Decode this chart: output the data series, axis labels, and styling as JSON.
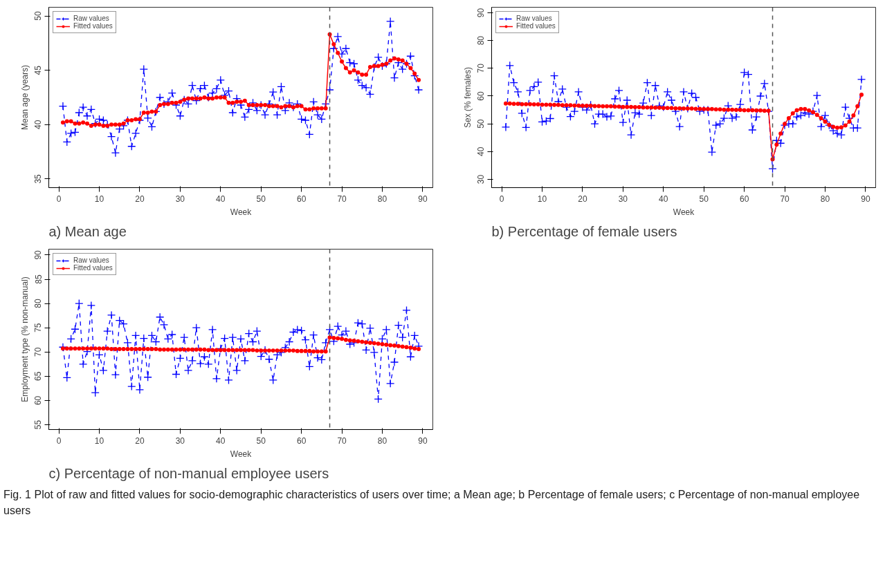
{
  "chart_data": [
    {
      "type": "line",
      "title": "a) Mean age",
      "xlabel": "Week",
      "ylabel": "Mean age (years)",
      "x": [
        1,
        2,
        3,
        4,
        5,
        6,
        7,
        8,
        9,
        10,
        11,
        12,
        13,
        14,
        15,
        16,
        17,
        18,
        19,
        20,
        21,
        22,
        23,
        24,
        25,
        26,
        27,
        28,
        29,
        30,
        31,
        32,
        33,
        34,
        35,
        36,
        37,
        38,
        39,
        40,
        41,
        42,
        43,
        44,
        45,
        46,
        47,
        48,
        49,
        50,
        51,
        52,
        53,
        54,
        55,
        56,
        57,
        58,
        59,
        60,
        61,
        62,
        63,
        64,
        65,
        66,
        67,
        68,
        69,
        70,
        71,
        72,
        73,
        74,
        75,
        76,
        77,
        78,
        79,
        80,
        81,
        82,
        83,
        84,
        85,
        86,
        87,
        88,
        89
      ],
      "series": [
        {
          "name": "Raw values",
          "color": "#0000ff",
          "marker": "cross",
          "line_style": "dashed",
          "values": [
            41.7,
            38.4,
            39.2,
            39.3,
            41.1,
            41.6,
            40.8,
            41.4,
            40.1,
            40.5,
            40.4,
            40.0,
            38.9,
            37.4,
            39.6,
            39.9,
            40.4,
            38.0,
            39.2,
            40.4,
            45.1,
            40.6,
            39.8,
            41.2,
            42.5,
            41.9,
            42.1,
            42.9,
            41.8,
            40.8,
            42.3,
            41.9,
            43.6,
            42.2,
            43.3,
            43.6,
            42.5,
            42.9,
            43.3,
            44.1,
            42.7,
            43.1,
            41.1,
            42.4,
            41.8,
            40.7,
            41.4,
            42.0,
            41.3,
            41.8,
            40.9,
            41.9,
            43.0,
            40.9,
            43.5,
            41.3,
            42.0,
            41.6,
            41.9,
            40.5,
            40.4,
            39.1,
            42.1,
            40.9,
            40.5,
            41.9,
            43.2,
            47.0,
            48.1,
            46.5,
            47.0,
            45.7,
            45.6,
            44.1,
            43.6,
            43.4,
            42.8,
            45.3,
            46.2,
            45.4,
            45.6,
            49.5,
            44.3,
            45.7,
            45.1,
            45.6,
            46.3,
            44.5,
            43.2
          ]
        },
        {
          "name": "Fitted values",
          "color": "#ff0000",
          "marker": "circle",
          "line_style": "solid",
          "values": [
            40.2,
            40.3,
            40.3,
            40.1,
            40.1,
            40.2,
            40.1,
            39.9,
            40.0,
            40.0,
            39.9,
            39.9,
            40.0,
            40.0,
            40.0,
            40.1,
            40.4,
            40.4,
            40.5,
            40.5,
            41.1,
            41.1,
            41.2,
            41.2,
            41.8,
            41.9,
            41.9,
            42.0,
            42.0,
            42.1,
            42.3,
            42.4,
            42.4,
            42.4,
            42.4,
            42.5,
            42.4,
            42.4,
            42.5,
            42.5,
            42.5,
            42.0,
            42.0,
            42.1,
            42.1,
            42.2,
            41.8,
            41.8,
            41.8,
            41.8,
            41.8,
            41.7,
            41.7,
            41.7,
            41.6,
            41.7,
            41.7,
            41.6,
            41.7,
            41.7,
            41.4,
            41.4,
            41.5,
            41.5,
            41.5,
            41.5,
            48.3,
            47.4,
            46.6,
            45.8,
            45.2,
            44.8,
            45.0,
            44.8,
            44.6,
            44.6,
            45.3,
            45.4,
            45.4,
            45.5,
            45.6,
            45.9,
            46.1,
            46.0,
            45.9,
            45.6,
            45.2,
            44.7,
            44.1
          ]
        }
      ],
      "xlim": [
        -2.5,
        92.5
      ],
      "xticks": [
        0,
        10,
        20,
        30,
        40,
        50,
        60,
        70,
        80,
        90
      ],
      "ylim": [
        34.2,
        50.8
      ],
      "yticks": [
        35,
        40,
        45,
        50
      ],
      "ref_lines": [
        {
          "axis": "x",
          "value": 67,
          "color": "#555555",
          "line_style": "dashed"
        }
      ],
      "grid": false,
      "legend": "top left"
    },
    {
      "type": "line",
      "title": "b) Percentage of female users",
      "xlabel": "Week",
      "ylabel": "Sex (% females)",
      "x": [
        1,
        2,
        3,
        4,
        5,
        6,
        7,
        8,
        9,
        10,
        11,
        12,
        13,
        14,
        15,
        16,
        17,
        18,
        19,
        20,
        21,
        22,
        23,
        24,
        25,
        26,
        27,
        28,
        29,
        30,
        31,
        32,
        33,
        34,
        35,
        36,
        37,
        38,
        39,
        40,
        41,
        42,
        43,
        44,
        45,
        46,
        47,
        48,
        49,
        50,
        51,
        52,
        53,
        54,
        55,
        56,
        57,
        58,
        59,
        60,
        61,
        62,
        63,
        64,
        65,
        66,
        67,
        68,
        69,
        70,
        71,
        72,
        73,
        74,
        75,
        76,
        77,
        78,
        79,
        80,
        81,
        82,
        83,
        84,
        85,
        86,
        87,
        88,
        89
      ],
      "series": [
        {
          "name": "Raw values",
          "color": "#0000ff",
          "marker": "cross",
          "line_style": "dashed",
          "values": [
            48.8,
            71.0,
            64.8,
            61.5,
            53.8,
            48.7,
            62.0,
            63.4,
            65.0,
            50.7,
            51.0,
            51.9,
            67.3,
            58.0,
            62.5,
            56.0,
            52.6,
            54.5,
            61.5,
            56.0,
            55.0,
            56.8,
            50.0,
            53.5,
            53.5,
            52.5,
            52.8,
            59.0,
            62.0,
            50.5,
            58.5,
            46.0,
            54.0,
            53.5,
            57.5,
            64.8,
            53.0,
            63.8,
            56.5,
            56.0,
            61.5,
            58.5,
            54.5,
            49.0,
            61.5,
            55.5,
            61.0,
            59.5,
            54.5,
            55.0,
            55.0,
            39.8,
            49.5,
            50.0,
            52.0,
            56.5,
            52.0,
            52.5,
            57.0,
            68.5,
            67.8,
            47.8,
            52.5,
            60.0,
            64.5,
            54.5,
            33.8,
            44.0,
            43.0,
            49.5,
            50.0,
            50.0,
            52.5,
            53.0,
            54.0,
            53.5,
            54.5,
            60.2,
            49.0,
            53.0,
            49.5,
            47.5,
            46.5,
            46.0,
            56.0,
            52.0,
            48.5,
            48.5,
            66.0
          ]
        },
        {
          "name": "Fitted values",
          "color": "#ff0000",
          "marker": "circle",
          "line_style": "solid",
          "values": [
            57.3,
            57.3,
            57.2,
            57.2,
            57.1,
            57.1,
            57.1,
            57.0,
            57.0,
            56.9,
            56.9,
            56.9,
            56.8,
            56.8,
            56.7,
            56.7,
            56.7,
            56.6,
            56.6,
            56.5,
            56.5,
            56.5,
            56.4,
            56.4,
            56.3,
            56.3,
            56.3,
            56.2,
            56.2,
            56.1,
            56.1,
            56.1,
            56.0,
            56.0,
            55.9,
            55.9,
            55.9,
            55.8,
            55.8,
            55.7,
            55.7,
            55.7,
            55.6,
            55.6,
            55.5,
            55.5,
            55.5,
            55.4,
            55.4,
            55.3,
            55.3,
            55.3,
            55.2,
            55.2,
            55.1,
            55.1,
            55.1,
            55.0,
            55.0,
            54.9,
            54.9,
            54.9,
            54.8,
            54.8,
            54.7,
            54.7,
            37.2,
            42.5,
            46.5,
            50.0,
            52.0,
            53.8,
            54.9,
            55.3,
            55.3,
            54.8,
            54.2,
            53.2,
            52.0,
            50.8,
            49.6,
            48.9,
            48.6,
            48.7,
            49.4,
            50.8,
            53.0,
            56.3,
            60.5
          ]
        }
      ],
      "xlim": [
        -2.5,
        92.5
      ],
      "xticks": [
        0,
        10,
        20,
        30,
        40,
        50,
        60,
        70,
        80,
        90
      ],
      "ylim": [
        27,
        92
      ],
      "yticks": [
        30,
        40,
        50,
        60,
        70,
        80,
        90
      ],
      "ref_lines": [
        {
          "axis": "x",
          "value": 67,
          "color": "#555555",
          "line_style": "dashed"
        }
      ],
      "grid": false,
      "legend": "top left"
    },
    {
      "type": "line",
      "title": "c) Percentage of non-manual employee users",
      "xlabel": "Week",
      "ylabel": "Employment type (% non-manual)",
      "x": [
        1,
        2,
        3,
        4,
        5,
        6,
        7,
        8,
        9,
        10,
        11,
        12,
        13,
        14,
        15,
        16,
        17,
        18,
        19,
        20,
        21,
        22,
        23,
        24,
        25,
        26,
        27,
        28,
        29,
        30,
        31,
        32,
        33,
        34,
        35,
        36,
        37,
        38,
        39,
        40,
        41,
        42,
        43,
        44,
        45,
        46,
        47,
        48,
        49,
        50,
        51,
        52,
        53,
        54,
        55,
        56,
        57,
        58,
        59,
        60,
        61,
        62,
        63,
        64,
        65,
        66,
        67,
        68,
        69,
        70,
        71,
        72,
        73,
        74,
        75,
        76,
        77,
        78,
        79,
        80,
        81,
        82,
        83,
        84,
        85,
        86,
        87,
        88,
        89
      ],
      "series": [
        {
          "name": "Raw values",
          "color": "#0000ff",
          "marker": "cross",
          "line_style": "dashed",
          "values": [
            71.0,
            64.7,
            72.7,
            74.7,
            80.0,
            67.5,
            70.1,
            79.6,
            61.6,
            69.4,
            66.2,
            74.3,
            77.6,
            65.3,
            76.5,
            75.8,
            71.9,
            62.9,
            73.4,
            62.2,
            72.8,
            64.8,
            73.4,
            72.1,
            77.2,
            75.6,
            72.7,
            73.6,
            65.4,
            68.7,
            73.0,
            66.2,
            68.2,
            75.0,
            67.6,
            69.0,
            67.5,
            74.6,
            64.5,
            70.7,
            72.8,
            64.2,
            73.0,
            66.2,
            72.7,
            68.2,
            73.8,
            72.1,
            74.3,
            69.1,
            70.4,
            68.5,
            64.2,
            69.4,
            69.9,
            70.9,
            72.1,
            74.1,
            74.6,
            74.4,
            72.5,
            67.0,
            73.5,
            68.8,
            68.4,
            71.9,
            74.6,
            72.2,
            75.3,
            73.5,
            74.3,
            71.6,
            71.9,
            76.0,
            75.8,
            70.4,
            74.9,
            69.9,
            60.3,
            72.7,
            74.6,
            63.5,
            67.9,
            75.5,
            73.0,
            78.6,
            69.0,
            73.4,
            71.2
          ]
        },
        {
          "name": "Fitted values",
          "color": "#ff0000",
          "marker": "circle",
          "line_style": "solid",
          "values": [
            70.7,
            70.7,
            70.7,
            70.7,
            70.7,
            70.7,
            70.7,
            70.7,
            70.7,
            70.7,
            70.7,
            70.7,
            70.6,
            70.6,
            70.6,
            70.6,
            70.6,
            70.6,
            70.6,
            70.6,
            70.6,
            70.6,
            70.6,
            70.6,
            70.5,
            70.5,
            70.5,
            70.5,
            70.5,
            70.5,
            70.5,
            70.5,
            70.5,
            70.5,
            70.5,
            70.5,
            70.4,
            70.4,
            70.4,
            70.4,
            70.4,
            70.4,
            70.4,
            70.4,
            70.4,
            70.4,
            70.4,
            70.4,
            70.3,
            70.3,
            70.3,
            70.3,
            70.3,
            70.3,
            70.3,
            70.3,
            70.3,
            70.3,
            70.2,
            70.2,
            70.2,
            70.2,
            70.1,
            70.1,
            70.1,
            70.1,
            73.0,
            72.9,
            72.8,
            72.7,
            72.5,
            72.4,
            72.3,
            72.2,
            72.1,
            72.0,
            71.9,
            71.8,
            71.7,
            71.6,
            71.5,
            71.4,
            71.3,
            71.2,
            71.1,
            71.0,
            70.9,
            70.7,
            70.6
          ]
        }
      ],
      "xlim": [
        -2.5,
        92.5
      ],
      "xticks": [
        0,
        10,
        20,
        30,
        40,
        50,
        60,
        70,
        80,
        90
      ],
      "ylim": [
        54,
        91.2
      ],
      "yticks": [
        55,
        60,
        65,
        70,
        75,
        80,
        85,
        90
      ],
      "ref_lines": [
        {
          "axis": "x",
          "value": 67,
          "color": "#555555",
          "line_style": "dashed"
        }
      ],
      "grid": false,
      "legend": "top left",
      "annotations": [
        "Fig. 1 Plot of raw and fitted values for socio-demographic characteristics of users over time; a Mean age; b Percentage of female users; c Percentage of non-manual employee users"
      ]
    }
  ]
}
